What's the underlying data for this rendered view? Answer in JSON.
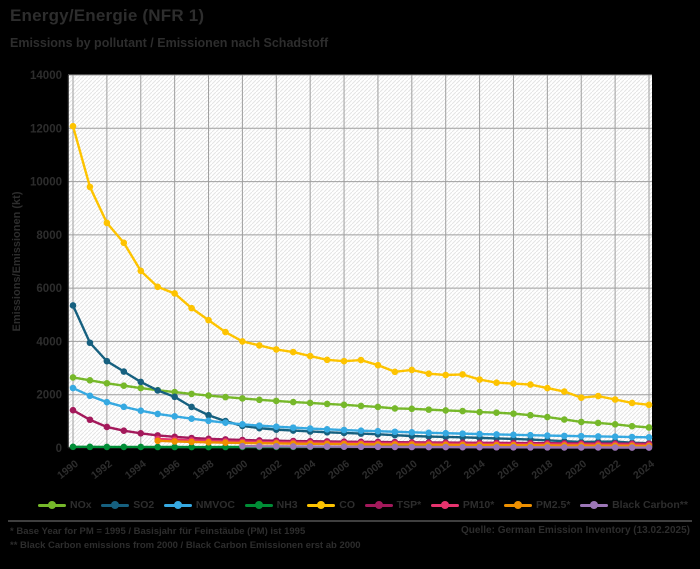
{
  "chart_data": {
    "type": "line",
    "title": "Energy/Energie (NFR 1)",
    "subtitle": "Emissions by pollutant / Emissionen nach Schadstoff",
    "ylabel": "Emissions/Emissionen (kt)",
    "ylim": [
      0,
      14000
    ],
    "ytick_step": 2000,
    "xtick_step": 2,
    "grid": true,
    "legend_position": "bottom",
    "x": [
      1990,
      1991,
      1992,
      1993,
      1994,
      1995,
      1996,
      1997,
      1998,
      1999,
      2000,
      2001,
      2002,
      2003,
      2004,
      2005,
      2006,
      2007,
      2008,
      2009,
      2010,
      2011,
      2012,
      2013,
      2014,
      2015,
      2016,
      2017,
      2018,
      2019,
      2020,
      2021,
      2022,
      2023,
      2024
    ],
    "series": [
      {
        "name": "NOx",
        "color": "#76b82a",
        "values": [
          2650,
          2540,
          2430,
          2340,
          2250,
          2170,
          2100,
          2030,
          1970,
          1910,
          1860,
          1810,
          1765,
          1725,
          1690,
          1655,
          1620,
          1580,
          1540,
          1485,
          1470,
          1440,
          1410,
          1385,
          1350,
          1325,
          1290,
          1230,
          1160,
          1070,
          980,
          940,
          890,
          820,
          770
        ]
      },
      {
        "name": "SO2",
        "color": "#16607f",
        "values": [
          5350,
          3950,
          3260,
          2870,
          2480,
          2160,
          1920,
          1540,
          1230,
          1010,
          830,
          745,
          690,
          655,
          620,
          590,
          565,
          540,
          515,
          480,
          450,
          430,
          415,
          400,
          380,
          360,
          340,
          315,
          290,
          255,
          225,
          235,
          240,
          200,
          180
        ]
      },
      {
        "name": "NMVOC",
        "color": "#36a9e1",
        "values": [
          2250,
          1960,
          1720,
          1545,
          1400,
          1280,
          1190,
          1100,
          1020,
          950,
          890,
          840,
          800,
          765,
          730,
          700,
          675,
          650,
          630,
          610,
          590,
          570,
          555,
          540,
          525,
          510,
          495,
          480,
          465,
          455,
          445,
          435,
          425,
          410,
          400
        ]
      },
      {
        "name": "NH3",
        "color": "#008d36",
        "values": [
          45,
          43,
          41,
          40,
          39,
          38,
          38,
          37,
          37,
          38,
          39,
          40,
          41,
          42,
          44,
          46,
          49,
          52,
          55,
          58,
          61,
          63,
          65,
          67,
          69,
          71,
          72,
          73,
          73,
          72,
          71,
          70,
          69,
          68,
          67
        ]
      },
      {
        "name": "CO",
        "color": "#fdc300",
        "values": [
          12080,
          9800,
          8450,
          7700,
          6650,
          6050,
          5800,
          5250,
          4800,
          4350,
          4000,
          3850,
          3700,
          3600,
          3450,
          3310,
          3260,
          3300,
          3110,
          2860,
          2930,
          2790,
          2740,
          2760,
          2570,
          2450,
          2420,
          2380,
          2250,
          2120,
          1890,
          1950,
          1820,
          1690,
          1620
        ]
      },
      {
        "name": "TSP*",
        "color": "#a3195b",
        "values": [
          1420,
          1060,
          790,
          650,
          550,
          470,
          420,
          375,
          345,
          320,
          300,
          285,
          272,
          262,
          253,
          245,
          238,
          232,
          226,
          220,
          215,
          210,
          205,
          200,
          196,
          192,
          188,
          184,
          180,
          176,
          172,
          168,
          165,
          162,
          160
        ]
      },
      {
        "name": "PM10*",
        "color": "#e6336e",
        "values": [
          null,
          null,
          null,
          null,
          null,
          340,
          310,
          285,
          265,
          248,
          235,
          224,
          215,
          207,
          200,
          194,
          188,
          183,
          178,
          173,
          169,
          165,
          161,
          158,
          155,
          152,
          149,
          146,
          143,
          140,
          137,
          134,
          131,
          128,
          125
        ]
      },
      {
        "name": "PM2.5*",
        "color": "#ee9000",
        "values": [
          null,
          null,
          null,
          null,
          null,
          270,
          248,
          228,
          212,
          198,
          187,
          178,
          170,
          163,
          157,
          151,
          146,
          141,
          136,
          132,
          128,
          124,
          120,
          116,
          112,
          108,
          104,
          100,
          96,
          93,
          90,
          87,
          84,
          81,
          78
        ]
      },
      {
        "name": "Black Carbon**",
        "color": "#9c76b7",
        "values": [
          null,
          null,
          null,
          null,
          null,
          null,
          null,
          null,
          null,
          null,
          68,
          65,
          62,
          59,
          56,
          53,
          50,
          47,
          44,
          41,
          38,
          36,
          34,
          32,
          30,
          28,
          26,
          24,
          23,
          22,
          21,
          20,
          19,
          18,
          17
        ]
      }
    ]
  },
  "footnotes": {
    "line1": "* Base Year for PM = 1995 / Basisjahr für Feinstäube (PM) ist 1995",
    "line2": "** Black Carbon emissions from 2000 / Black Carbon Emissionen erst ab 2000"
  },
  "source": "Quelle: German Emission Inventory (13.02.2025)",
  "colors": {
    "background": "#000000",
    "plot_background": "#ffffff",
    "hatch": "#e4e4e4",
    "grid": "#9e9e9e",
    "spine": "#141414",
    "text": "#2d2d2d",
    "footer_rule": "#3f3f3f"
  }
}
